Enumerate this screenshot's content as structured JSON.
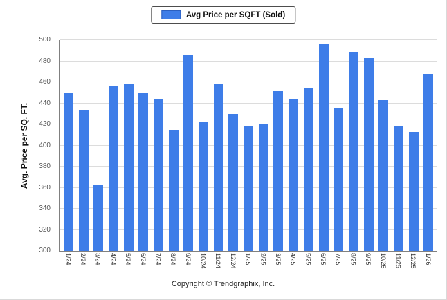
{
  "footer": {
    "copyright": "Copyright © Trendgraphix, Inc."
  },
  "colors": {
    "bar": "#3e7de8",
    "bar_border": "#2b5fc0",
    "grid": "#dcdcdc",
    "axis": "#808080"
  },
  "chart_data": {
    "type": "bar",
    "title": "",
    "legend": "Avg Price per SQFT (Sold)",
    "legend_position": "top-center",
    "xlabel": "",
    "ylabel": "Avg. Price per SQ. FT.",
    "ylim": [
      300,
      500
    ],
    "ytick_step": 20,
    "grid": true,
    "categories": [
      "1/24",
      "2/24",
      "3/24",
      "4/24",
      "5/24",
      "6/24",
      "7/24",
      "8/24",
      "9/24",
      "10/24",
      "11/24",
      "12/24",
      "1/25",
      "2/25",
      "3/25",
      "4/25",
      "5/25",
      "6/25",
      "7/25",
      "8/25",
      "9/25",
      "10/25",
      "11/25",
      "12/25",
      "1/26"
    ],
    "values": [
      450,
      434,
      363,
      457,
      458,
      450,
      444,
      415,
      486,
      422,
      458,
      430,
      419,
      420,
      452,
      444,
      454,
      496,
      436,
      489,
      483,
      443,
      418,
      413,
      468
    ]
  }
}
